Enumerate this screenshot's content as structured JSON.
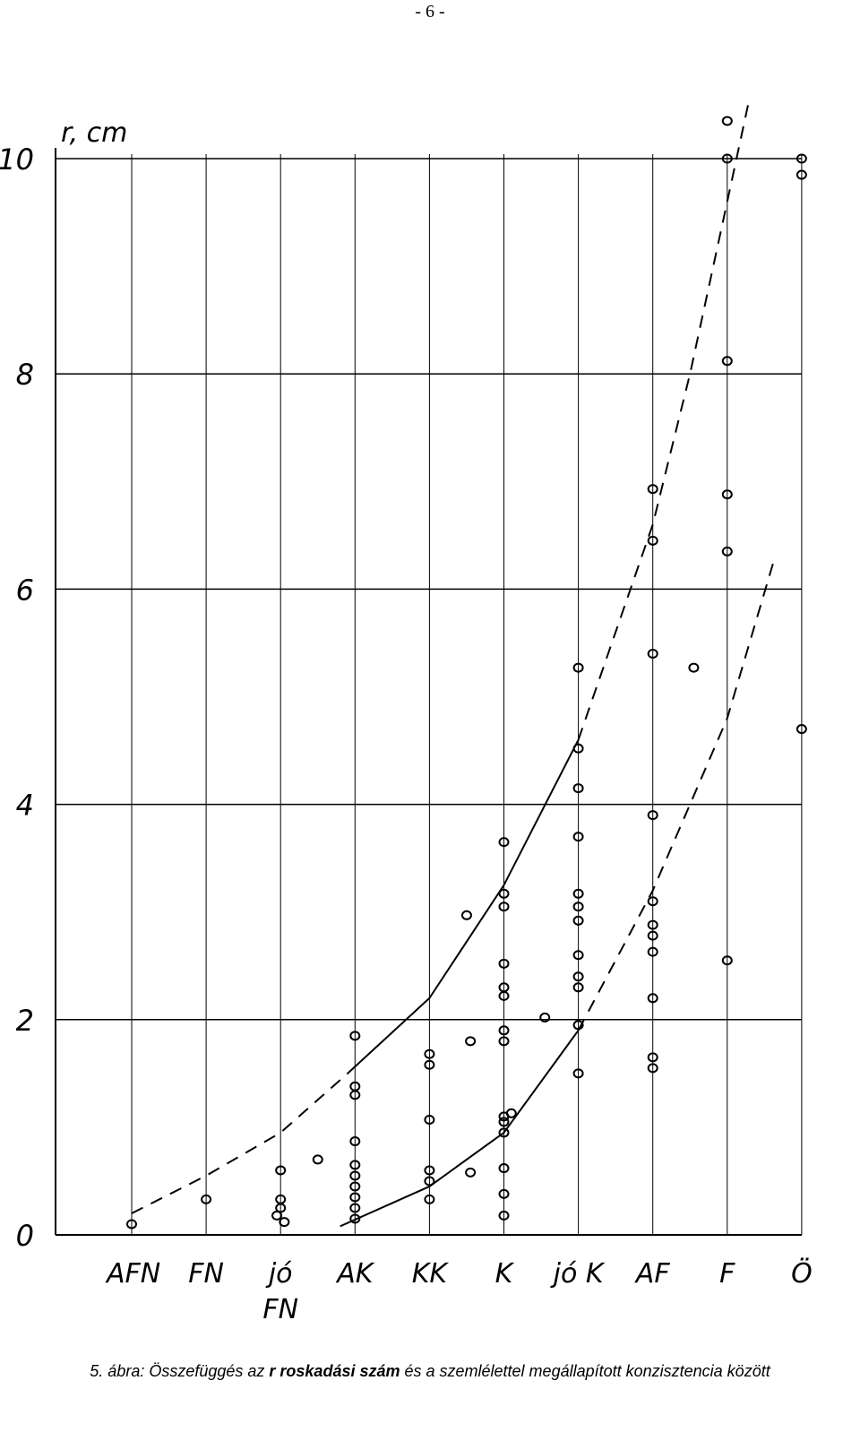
{
  "page_number": "- 6 -",
  "chart_data": {
    "type": "scatter",
    "y_label": "r, cm",
    "xlim": [
      -1,
      9.05
    ],
    "ylim": [
      0,
      10
    ],
    "xticks": [
      {
        "value": 0,
        "label": "AFN"
      },
      {
        "value": 1,
        "label": "FN"
      },
      {
        "value": 2,
        "label": "jó FN"
      },
      {
        "value": 3,
        "label": "AK"
      },
      {
        "value": 4,
        "label": "KK"
      },
      {
        "value": 5,
        "label": "K"
      },
      {
        "value": 6,
        "label": "jó K"
      },
      {
        "value": 7,
        "label": "AF"
      },
      {
        "value": 8,
        "label": "F"
      },
      {
        "value": 9,
        "label": "Ö"
      }
    ],
    "yticks": [
      0,
      2,
      4,
      6,
      8,
      10
    ],
    "grid": true,
    "color": "#000000",
    "series": [
      {
        "x": [
          0,
          1,
          2,
          2,
          2,
          1.95,
          2.05,
          2.5,
          3,
          3,
          3,
          3,
          3,
          3,
          3,
          3,
          3,
          3,
          4,
          4,
          4,
          4,
          4,
          4,
          4.5,
          4.55,
          4.55,
          5,
          5,
          5,
          5,
          5,
          5,
          5,
          5,
          5,
          5,
          5,
          5,
          5,
          5,
          5.1,
          5.55,
          6,
          6,
          6,
          6,
          6,
          6,
          6,
          6,
          6,
          6,
          6,
          6,
          7,
          7,
          7,
          7,
          7,
          7,
          7,
          7,
          7,
          7,
          7,
          7.55,
          8,
          8,
          8,
          8,
          8,
          8,
          9,
          9,
          9
        ],
        "values": [
          0.1,
          0.33,
          0.6,
          0.33,
          0.25,
          0.18,
          0.12,
          0.7,
          1.85,
          1.38,
          1.3,
          0.87,
          0.65,
          0.55,
          0.45,
          0.35,
          0.25,
          0.15,
          1.68,
          1.58,
          1.07,
          0.6,
          0.5,
          0.33,
          2.97,
          1.8,
          0.58,
          3.65,
          3.17,
          3.05,
          2.52,
          2.3,
          2.22,
          1.9,
          1.8,
          1.1,
          1.05,
          0.95,
          0.62,
          0.38,
          0.18,
          1.13,
          2.02,
          5.27,
          4.52,
          4.15,
          3.7,
          3.17,
          3.05,
          2.92,
          2.6,
          2.4,
          2.3,
          1.95,
          1.5,
          6.93,
          6.45,
          5.4,
          3.9,
          3.1,
          2.88,
          2.78,
          2.63,
          2.2,
          1.65,
          1.55,
          5.27,
          10.35,
          10,
          8.12,
          6.88,
          6.35,
          2.55,
          10,
          9.85,
          4.7
        ]
      }
    ],
    "curves": [
      {
        "dashed": true,
        "x": [
          0,
          1,
          2,
          2.9
        ],
        "values": [
          0.2,
          0.55,
          0.95,
          1.5
        ]
      },
      {
        "dashed": false,
        "x": [
          2.9,
          4,
          5,
          6
        ],
        "values": [
          1.5,
          2.2,
          3.25,
          4.6
        ]
      },
      {
        "dashed": true,
        "x": [
          6,
          7,
          7.5,
          8,
          8.28
        ],
        "values": [
          4.6,
          6.6,
          8,
          9.6,
          10.5
        ]
      },
      {
        "dashed": false,
        "x": [
          2.8,
          4,
          5,
          6
        ],
        "values": [
          0.08,
          0.45,
          0.95,
          1.9
        ]
      },
      {
        "dashed": true,
        "x": [
          6,
          7,
          8,
          8.62
        ],
        "values": [
          1.9,
          3.2,
          4.8,
          6.25
        ]
      }
    ]
  },
  "caption": [
    "5. ábra: Összefüggés az ",
    "r roskadási szám",
    " és a szemlélettel megállapított konzisztencia között"
  ]
}
